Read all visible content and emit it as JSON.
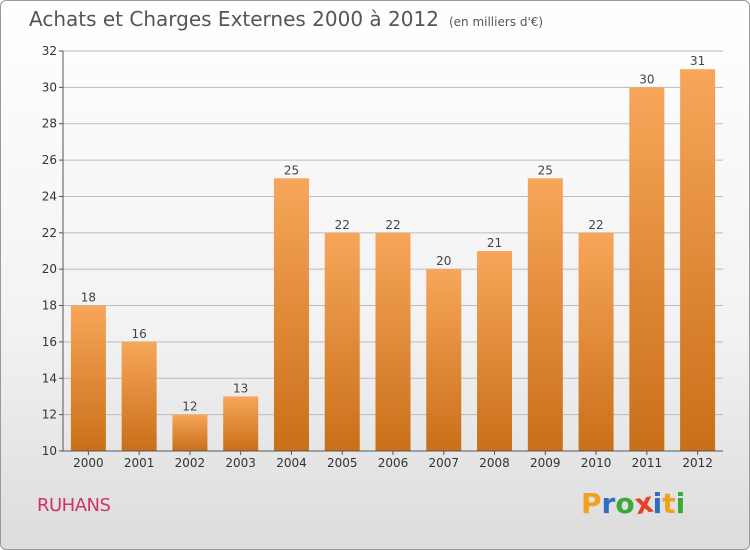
{
  "header": {
    "title": "Achats et Charges Externes 2000 à 2012",
    "unit": "(en milliers d'€)"
  },
  "footer": {
    "place": "RUHANS",
    "logo": {
      "letters": [
        "P",
        "r",
        "o",
        "x",
        "i",
        "t",
        "i"
      ],
      "colors": [
        "#f0a21e",
        "#2e6dc0",
        "#3aa83a",
        "#e8402b",
        "#2e6dc0",
        "#f0a21e",
        "#3aa83a"
      ]
    }
  },
  "colors": {
    "bar_top": "#f7a65a",
    "bar_bottom": "#c96f18",
    "grid": "#bbbbbb",
    "place": "#d2306e"
  },
  "chart_data": {
    "type": "bar",
    "title": "Achats et Charges Externes 2000 à 2012",
    "subtitle": "(en milliers d'€)",
    "categories": [
      "2000",
      "2001",
      "2002",
      "2003",
      "2004",
      "2005",
      "2006",
      "2007",
      "2008",
      "2009",
      "2010",
      "2011",
      "2012"
    ],
    "values": [
      18,
      16,
      12,
      13,
      25,
      22,
      22,
      20,
      21,
      25,
      22,
      30,
      31
    ],
    "ylim": [
      10,
      32
    ],
    "yticks": [
      10,
      12,
      14,
      16,
      18,
      20,
      22,
      24,
      26,
      28,
      30,
      32
    ],
    "xlabel": "",
    "ylabel": "",
    "grid": true,
    "data_labels": true
  }
}
